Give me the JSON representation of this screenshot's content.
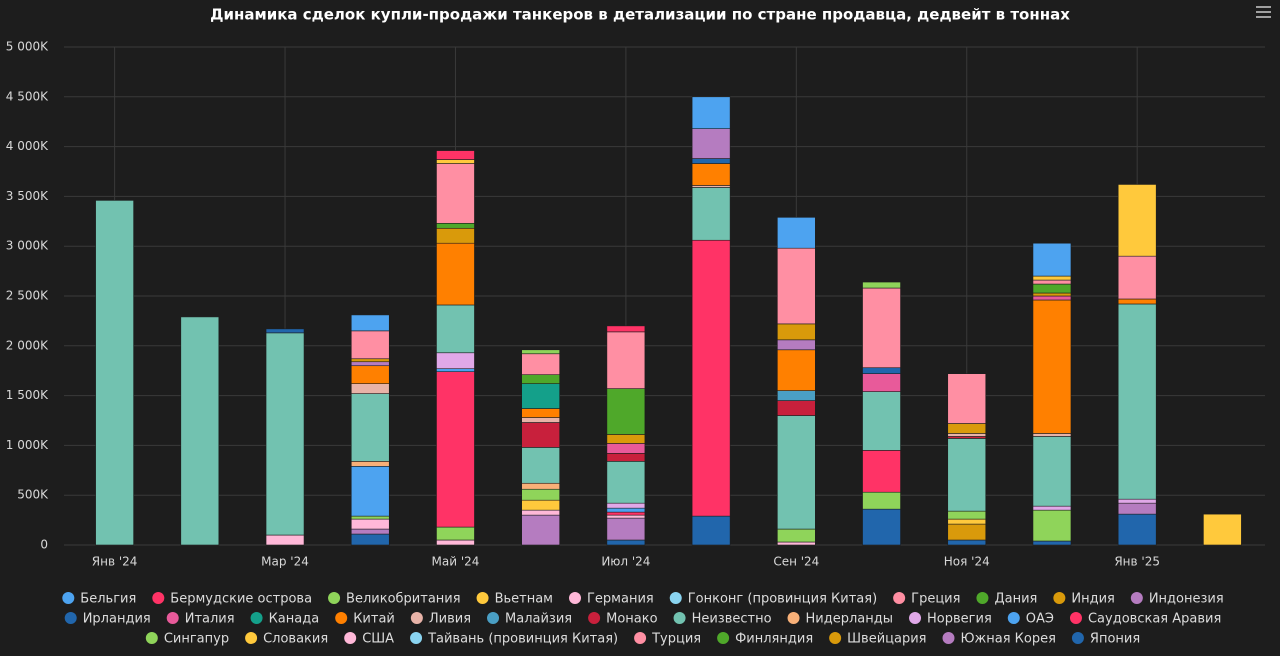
{
  "chart_data": {
    "type": "stacked-bar",
    "title": "Динамика сделок купли-продажи танкеров в детализации по стране продавца, дедвейт в тоннах",
    "categories": [
      "Янв '24",
      null,
      "Мар '24",
      null,
      "Май '24",
      null,
      "Июл '24",
      null,
      "Сен '24",
      null,
      "Ноя '24",
      null,
      "Янв '25",
      null
    ],
    "ylim": [
      0,
      5000
    ],
    "yticks": [
      {
        "value": 0,
        "label": "0"
      },
      {
        "value": 500,
        "label": "500K"
      },
      {
        "value": 1000,
        "label": "1 000K"
      },
      {
        "value": 1500,
        "label": "1 500K"
      },
      {
        "value": 2000,
        "label": "2 000K"
      },
      {
        "value": 2500,
        "label": "2 500K"
      },
      {
        "value": 3000,
        "label": "3 000K"
      },
      {
        "value": 3500,
        "label": "3 500K"
      },
      {
        "value": 4000,
        "label": "4 000K"
      },
      {
        "value": 4500,
        "label": "4 500K"
      },
      {
        "value": 5000,
        "label": "5 000K"
      }
    ],
    "grid": true,
    "series": [
      {
        "name": "Бельгия",
        "color": "#4da3f0",
        "values": [
          0,
          0,
          0,
          160,
          0,
          0,
          0,
          320,
          310,
          0,
          0,
          330,
          0,
          0
        ]
      },
      {
        "name": "Бермудские острова",
        "color": "#ff3366",
        "values": [
          0,
          0,
          0,
          0,
          90,
          0,
          60,
          0,
          0,
          0,
          0,
          0,
          0,
          0
        ]
      },
      {
        "name": "Великобритания",
        "color": "#8fd45a",
        "values": [
          0,
          0,
          0,
          0,
          0,
          40,
          0,
          0,
          0,
          60,
          0,
          0,
          0,
          0
        ]
      },
      {
        "name": "Вьетнам",
        "color": "#ffc93c",
        "values": [
          0,
          0,
          0,
          0,
          40,
          0,
          0,
          0,
          0,
          0,
          0,
          40,
          720,
          310
        ]
      },
      {
        "name": "Германия",
        "color": "#ffb8d8",
        "values": [
          0,
          0,
          0,
          0,
          0,
          0,
          0,
          0,
          0,
          0,
          0,
          0,
          0,
          0
        ]
      },
      {
        "name": "Гонконг (провинция Китая)",
        "color": "#8ad4f0",
        "values": [
          0,
          0,
          0,
          0,
          0,
          0,
          0,
          0,
          0,
          0,
          0,
          0,
          0,
          0
        ]
      },
      {
        "name": "Греция",
        "color": "#ff8fa3",
        "values": [
          0,
          0,
          0,
          280,
          600,
          210,
          570,
          0,
          760,
          800,
          500,
          40,
          430,
          0
        ]
      },
      {
        "name": "Дания",
        "color": "#4fa82a",
        "values": [
          0,
          0,
          0,
          0,
          50,
          90,
          460,
          0,
          0,
          0,
          0,
          90,
          0,
          0
        ]
      },
      {
        "name": "Индия",
        "color": "#d99a0b",
        "values": [
          0,
          0,
          0,
          30,
          150,
          0,
          90,
          0,
          160,
          0,
          100,
          30,
          0,
          0
        ]
      },
      {
        "name": "Индонезия",
        "color": "#b57cc0",
        "values": [
          0,
          0,
          0,
          40,
          0,
          0,
          0,
          300,
          100,
          0,
          0,
          0,
          0,
          0
        ]
      },
      {
        "name": "Ирландия",
        "color": "#2166ac",
        "values": [
          0,
          0,
          40,
          0,
          0,
          0,
          0,
          50,
          0,
          60,
          0,
          0,
          0,
          0
        ]
      },
      {
        "name": "Италия",
        "color": "#e85a9a",
        "values": [
          0,
          0,
          0,
          0,
          0,
          0,
          100,
          0,
          0,
          180,
          0,
          40,
          0,
          0
        ]
      },
      {
        "name": "Канада",
        "color": "#14a08a",
        "values": [
          0,
          0,
          0,
          0,
          0,
          250,
          0,
          0,
          0,
          0,
          0,
          0,
          0,
          0
        ]
      },
      {
        "name": "Китай",
        "color": "#ff8000",
        "values": [
          0,
          0,
          0,
          180,
          620,
          90,
          0,
          220,
          410,
          0,
          0,
          1340,
          50,
          0
        ]
      },
      {
        "name": "Ливия",
        "color": "#e8b3a8",
        "values": [
          0,
          0,
          0,
          100,
          0,
          50,
          0,
          20,
          0,
          0,
          30,
          30,
          0,
          0
        ]
      },
      {
        "name": "Малайзия",
        "color": "#4a9fc4",
        "values": [
          0,
          0,
          0,
          0,
          0,
          0,
          0,
          0,
          100,
          0,
          0,
          0,
          0,
          0
        ]
      },
      {
        "name": "Монако",
        "color": "#c8203c",
        "values": [
          0,
          0,
          0,
          0,
          0,
          250,
          80,
          0,
          150,
          0,
          20,
          0,
          0,
          0
        ]
      },
      {
        "name": "Неизвестно",
        "color": "#72c2b0",
        "values": [
          3460,
          2290,
          2030,
          680,
          480,
          360,
          420,
          530,
          1140,
          590,
          730,
          700,
          1960,
          0
        ]
      },
      {
        "name": "Нидерланды",
        "color": "#f8b078",
        "values": [
          0,
          0,
          0,
          50,
          0,
          60,
          0,
          0,
          0,
          0,
          0,
          0,
          0,
          0
        ]
      },
      {
        "name": "Норвегия",
        "color": "#e0a8e8",
        "values": [
          0,
          0,
          0,
          0,
          160,
          0,
          50,
          0,
          0,
          0,
          0,
          40,
          40,
          0
        ]
      },
      {
        "name": "ОАЭ",
        "color": "#4da3f0",
        "values": [
          0,
          0,
          0,
          500,
          30,
          0,
          40,
          0,
          0,
          0,
          0,
          0,
          0,
          0
        ]
      },
      {
        "name": "Саудовская Аравия",
        "color": "#ff3366",
        "values": [
          0,
          0,
          0,
          0,
          1560,
          0,
          30,
          2770,
          0,
          420,
          0,
          0,
          0,
          0
        ]
      },
      {
        "name": "Сингапур",
        "color": "#8fd45a",
        "values": [
          0,
          0,
          0,
          30,
          130,
          110,
          0,
          0,
          130,
          170,
          80,
          310,
          0,
          0
        ]
      },
      {
        "name": "Словакия",
        "color": "#ffc93c",
        "values": [
          0,
          0,
          0,
          0,
          0,
          100,
          0,
          0,
          0,
          0,
          50,
          0,
          0,
          0
        ]
      },
      {
        "name": "США",
        "color": "#ffb8d8",
        "values": [
          0,
          0,
          100,
          100,
          50,
          50,
          30,
          0,
          30,
          0,
          0,
          0,
          0,
          0
        ]
      },
      {
        "name": "Тайвань (провинция Китая)",
        "color": "#8ad4f0",
        "values": [
          0,
          0,
          0,
          0,
          0,
          0,
          0,
          0,
          0,
          0,
          0,
          0,
          0,
          0
        ]
      },
      {
        "name": "Турция",
        "color": "#ff8fa3",
        "values": [
          0,
          0,
          0,
          0,
          0,
          0,
          0,
          0,
          0,
          0,
          0,
          0,
          0,
          0
        ]
      },
      {
        "name": "Финляндия",
        "color": "#4fa82a",
        "values": [
          0,
          0,
          0,
          0,
          0,
          0,
          0,
          0,
          0,
          0,
          0,
          0,
          0,
          0
        ]
      },
      {
        "name": "Швейцария",
        "color": "#d99a0b",
        "values": [
          0,
          0,
          0,
          0,
          0,
          0,
          0,
          0,
          0,
          0,
          160,
          0,
          0,
          0
        ]
      },
      {
        "name": "Южная Корея",
        "color": "#b57cc0",
        "values": [
          0,
          0,
          0,
          50,
          0,
          300,
          220,
          0,
          0,
          0,
          0,
          0,
          110,
          0
        ]
      },
      {
        "name": "Япония",
        "color": "#2166ac",
        "values": [
          0,
          0,
          0,
          110,
          0,
          0,
          50,
          290,
          0,
          360,
          50,
          40,
          310,
          0
        ]
      }
    ]
  }
}
